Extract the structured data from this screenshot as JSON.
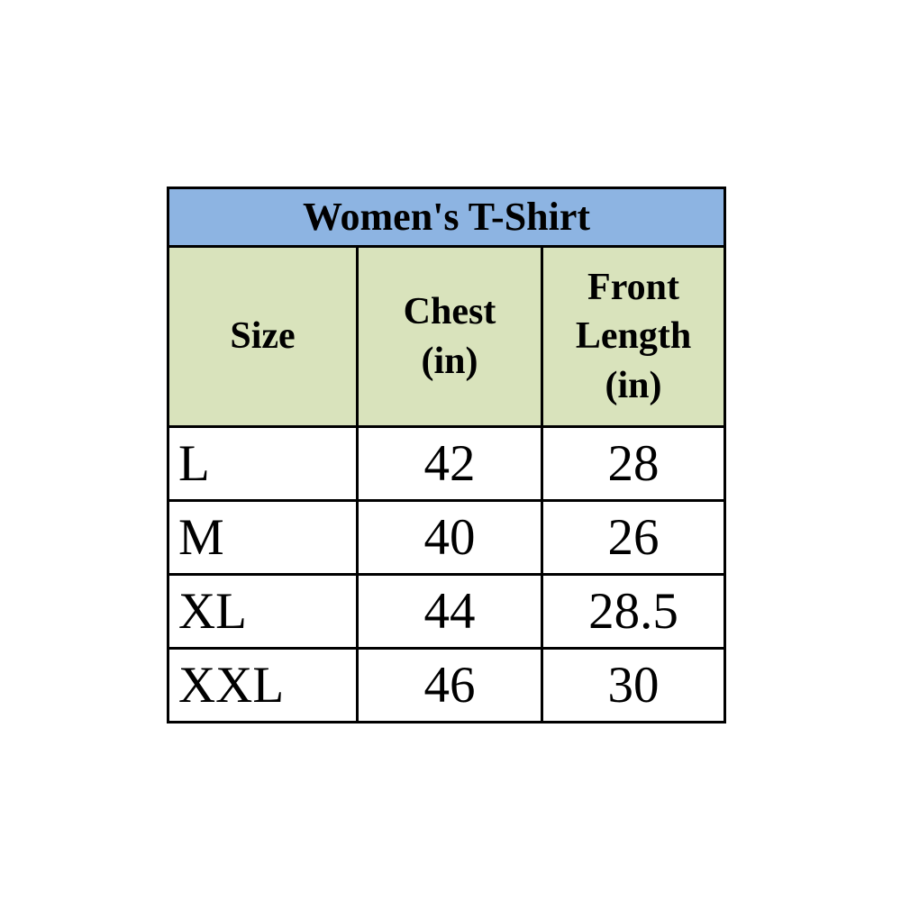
{
  "table": {
    "title": "Women's T-Shirt",
    "columns": [
      {
        "id": "size",
        "label": "Size"
      },
      {
        "id": "chest",
        "label": "Chest\n(in)"
      },
      {
        "id": "front_length",
        "label": "Front\nLength\n(in)"
      }
    ],
    "rows": [
      {
        "size": "L",
        "chest": "42",
        "front_length": "28"
      },
      {
        "size": "M",
        "chest": "40",
        "front_length": "26"
      },
      {
        "size": "XL",
        "chest": "44",
        "front_length": "28.5"
      },
      {
        "size": "XXL",
        "chest": "46",
        "front_length": "30"
      }
    ],
    "colors": {
      "title_bg": "#8DB4E2",
      "header_bg": "#D9E3BC",
      "row_bg": "#FFFFFF",
      "border": "#000000",
      "text": "#000000"
    }
  },
  "chart_data": {
    "type": "table",
    "title": "Women's T-Shirt",
    "columns": [
      "Size",
      "Chest (in)",
      "Front Length (in)"
    ],
    "rows": [
      [
        "L",
        42,
        28
      ],
      [
        "M",
        40,
        26
      ],
      [
        "XL",
        44,
        28.5
      ],
      [
        "XXL",
        46,
        30
      ]
    ],
    "units": "inches",
    "layout": {
      "title_position": "top",
      "header_row": true,
      "grid": true
    }
  }
}
